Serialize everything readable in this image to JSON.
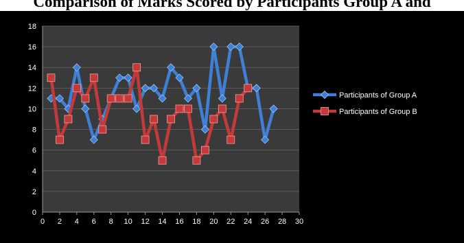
{
  "chart_data": {
    "type": "line",
    "title": "Comparison of Marks Scored by Participants Group A and",
    "xlabel": "",
    "ylabel": "",
    "xlim": [
      0,
      30
    ],
    "ylim": [
      0,
      18
    ],
    "x_ticks": [
      0,
      2,
      4,
      6,
      8,
      10,
      12,
      14,
      16,
      18,
      20,
      22,
      24,
      26,
      28,
      30
    ],
    "y_ticks": [
      0,
      2,
      4,
      6,
      8,
      10,
      12,
      14,
      16,
      18
    ],
    "grid": true,
    "legend_position": "right",
    "background": "#000000",
    "plot_background": "#3a3a3a",
    "series": [
      {
        "name": "Participants of Group A",
        "color": "#3f7fd6",
        "marker": "diamond",
        "x": [
          1,
          2,
          3,
          4,
          5,
          6,
          7,
          8,
          9,
          10,
          11,
          12,
          13,
          14,
          15,
          16,
          17,
          18,
          19,
          20,
          21,
          22,
          23,
          24,
          25,
          26,
          27
        ],
        "values": [
          11,
          11,
          10,
          14,
          10,
          7,
          9,
          11,
          13,
          13,
          10,
          12,
          12,
          11,
          14,
          13,
          11,
          12,
          8,
          16,
          11,
          16,
          16,
          12,
          12,
          7,
          10
        ]
      },
      {
        "name": "Participants of Group B",
        "color": "#c43a3a",
        "marker": "square",
        "x": [
          1,
          2,
          3,
          4,
          5,
          6,
          7,
          8,
          9,
          10,
          11,
          12,
          13,
          14,
          15,
          16,
          17,
          18,
          19,
          20,
          21,
          22,
          23,
          24
        ],
        "values": [
          13,
          7,
          9,
          12,
          11,
          13,
          8,
          11,
          11,
          11,
          14,
          7,
          9,
          5,
          9,
          10,
          10,
          5,
          6,
          9,
          10,
          7,
          11,
          12
        ]
      }
    ]
  }
}
